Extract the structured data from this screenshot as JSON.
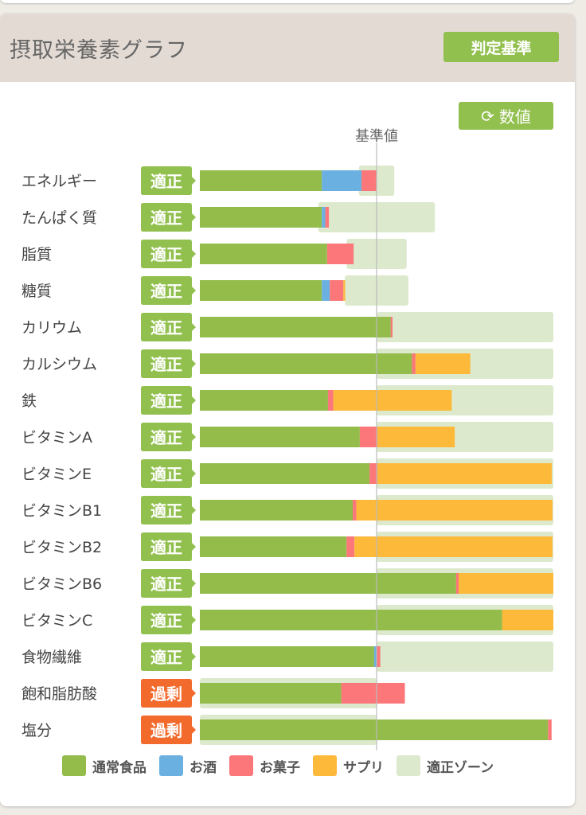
{
  "header": {
    "title": "摂取栄養素グラフ",
    "judge_button": "判定基準"
  },
  "toggle_button": {
    "label": "数値",
    "icon": "refresh-icon"
  },
  "reference_label": "基準値",
  "colors": {
    "normal": "#93bc4b",
    "alcohol": "#6ab0e0",
    "snack": "#fb7779",
    "supplement": "#fdb93a",
    "zone": "#dde9cd",
    "ok": "#92c04f",
    "excess": "#f26a2c"
  },
  "chart_data": {
    "type": "bar",
    "orientation": "horizontal",
    "stacked": true,
    "unit": "% of reference",
    "xlim": [
      0,
      200
    ],
    "reference_value": 100,
    "categories": [
      "エネルギー",
      "たんぱく質",
      "脂質",
      "糖質",
      "カリウム",
      "カルシウム",
      "鉄",
      "ビタミンA",
      "ビタミンE",
      "ビタミンB1",
      "ビタミンB2",
      "ビタミンB6",
      "ビタミンC",
      "食物繊維",
      "飽和脂肪酸",
      "塩分"
    ],
    "status": [
      "適正",
      "適正",
      "適正",
      "適正",
      "適正",
      "適正",
      "適正",
      "適正",
      "適正",
      "適正",
      "適正",
      "適正",
      "適正",
      "適正",
      "過剰",
      "過剰"
    ],
    "status_type": [
      "ok",
      "ok",
      "ok",
      "ok",
      "ok",
      "ok",
      "ok",
      "ok",
      "ok",
      "ok",
      "ok",
      "ok",
      "ok",
      "ok",
      "excess",
      "excess"
    ],
    "zone": [
      [
        90,
        110
      ],
      [
        67,
        133
      ],
      [
        83,
        117
      ],
      [
        82,
        118
      ],
      [
        100,
        200
      ],
      [
        100,
        200
      ],
      [
        100,
        200
      ],
      [
        100,
        200
      ],
      [
        100,
        200
      ],
      [
        100,
        200
      ],
      [
        100,
        200
      ],
      [
        100,
        200
      ],
      [
        100,
        200
      ],
      [
        100,
        200
      ],
      [
        0,
        100
      ],
      [
        0,
        100
      ]
    ],
    "series": [
      {
        "name": "通常食品",
        "key": "normal",
        "values": [
          69,
          69,
          72,
          69,
          108,
          120,
          72.5,
          90.5,
          96,
          86.5,
          83,
          145,
          171,
          98.6,
          80,
          197
        ]
      },
      {
        "name": "お酒",
        "key": "alcohol",
        "values": [
          22.5,
          2,
          0,
          4.5,
          0,
          0,
          0,
          0,
          0,
          0,
          0,
          0,
          0,
          1.5,
          0,
          0
        ]
      },
      {
        "name": "お菓子",
        "key": "snack",
        "values": [
          8.6,
          2,
          15,
          7.7,
          1,
          2,
          3,
          10,
          4.5,
          2,
          4.5,
          1.4,
          0,
          2,
          36,
          2
        ]
      },
      {
        "name": "サプリ",
        "key": "supplement",
        "values": [
          0,
          0,
          0,
          1,
          0,
          31,
          67,
          43.7,
          98.6,
          111,
          112,
          53.6,
          29,
          0,
          0,
          0
        ]
      }
    ],
    "legend": [
      "通常食品",
      "お酒",
      "お菓子",
      "サプリ",
      "適正ゾーン"
    ],
    "legend_position": "bottom"
  }
}
